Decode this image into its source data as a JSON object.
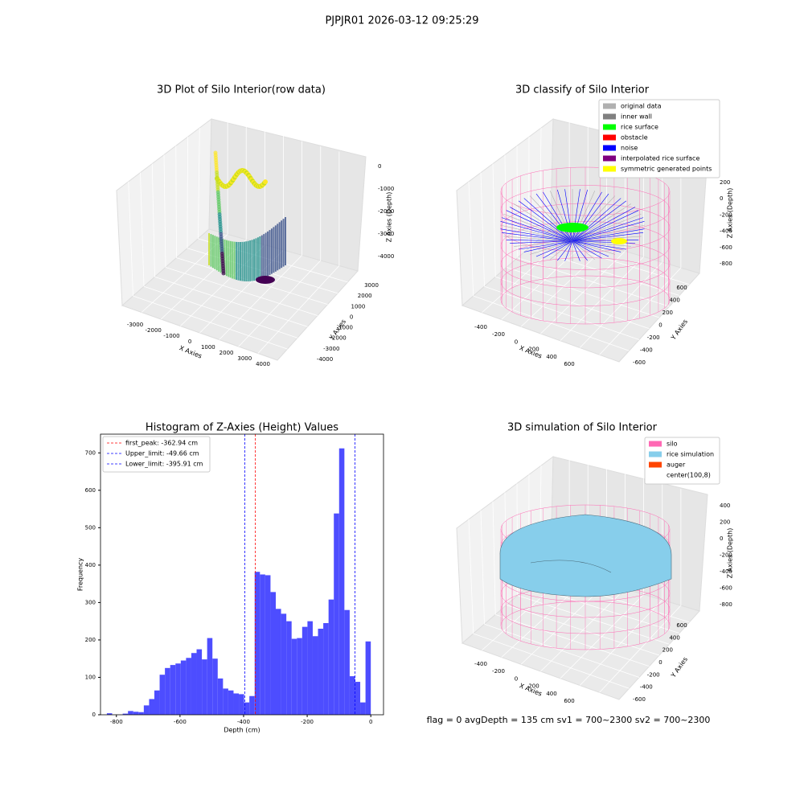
{
  "title": "PJPJR01 2026-03-12 09:25:29",
  "footer": "flag = 0     avgDepth = 135 cm  sv1 = 700~2300  sv2 = 700~2300",
  "chart_data": [
    {
      "type": "scatter3d",
      "title": "3D Plot of Silo Interior(row data)",
      "xlabel": "X Axies",
      "ylabel": "Y Axies",
      "zlabel": "Z Axies (Depth)",
      "xticks": [
        -3000,
        -2000,
        -1000,
        0,
        1000,
        2000,
        3000,
        4000
      ],
      "yticks": [
        -4000,
        -3000,
        -2000,
        -1000,
        0,
        1000,
        2000,
        3000
      ],
      "zticks": [
        -4000,
        -3000,
        -2000,
        -1000,
        0
      ]
    },
    {
      "type": "classify3d",
      "title": "3D classify of Silo Interior",
      "xlabel": "X Axies",
      "ylabel": "Y Axies",
      "zlabel": "Z Axies (Depth)",
      "xticks": [
        -400,
        -200,
        0,
        200,
        400,
        600
      ],
      "yticks": [
        -600,
        -400,
        -200,
        0,
        200,
        400,
        600
      ],
      "zticks": [
        -800,
        -600,
        -400,
        -200,
        0,
        200
      ],
      "legend": [
        {
          "name": "original data",
          "color": "#b0b0b0"
        },
        {
          "name": "inner wall",
          "color": "#808080"
        },
        {
          "name": "rice surface",
          "color": "#00ff00"
        },
        {
          "name": "obstacle",
          "color": "#ff0000"
        },
        {
          "name": "noise",
          "color": "#0000ff"
        },
        {
          "name": "interpolated rice surface",
          "color": "#800080"
        },
        {
          "name": "symmetric generated points",
          "color": "#ffff00"
        }
      ]
    },
    {
      "type": "histogram",
      "title": "Histogram of Z-Axies (Height) Values",
      "xlabel": "Depth (cm)",
      "ylabel": "Frequency",
      "color": "#4d4dff",
      "bins": [
        -830,
        -813.4,
        -796.8,
        -780.2,
        -763.6,
        -747,
        -730.4,
        -713.8,
        -697.2,
        -680.6,
        -664,
        -647.4,
        -630.8,
        -614.2,
        -597.6,
        -581,
        -564.4,
        -547.8,
        -531.2,
        -514.6,
        -498,
        -481.4,
        -464.8,
        -448.2,
        -431.6,
        -415,
        -398.4,
        -381.8,
        -365.2,
        -348.6,
        -332,
        -315.4,
        -298.8,
        -282.2,
        -265.6,
        -249,
        -232.4,
        -215.8,
        -199.2,
        -182.6,
        -166,
        -149.4,
        -132.8,
        -116.2,
        -99.6,
        -83,
        -66.4,
        -49.8,
        -33.2,
        -16.6,
        0
      ],
      "values": [
        4,
        0,
        0,
        3,
        10,
        8,
        7,
        25,
        42,
        65,
        107,
        125,
        133,
        137,
        145,
        152,
        165,
        175,
        148,
        205,
        150,
        97,
        70,
        65,
        57,
        55,
        33,
        50,
        382,
        375,
        373,
        328,
        283,
        270,
        250,
        203,
        205,
        235,
        250,
        210,
        230,
        245,
        308,
        538,
        712,
        280,
        103,
        88,
        33,
        196
      ],
      "xlim": [
        -850,
        40
      ],
      "ylim": [
        0,
        750
      ],
      "xticks": [
        -800,
        -600,
        -400,
        -200,
        0
      ],
      "yticks": [
        0,
        100,
        200,
        300,
        400,
        500,
        600,
        700
      ],
      "vlines": [
        {
          "label": "first_peak: -362.94 cm",
          "value": -362.94,
          "color": "#ff0000"
        },
        {
          "label": "Upper_limit: -49.66 cm",
          "value": -49.66,
          "color": "#0000ff"
        },
        {
          "label": "Lower_limit: -395.91 cm",
          "value": -395.91,
          "color": "#0000ff"
        }
      ]
    },
    {
      "type": "surface3d",
      "title": "3D simulation of Silo Interior",
      "xlabel": "X Axies",
      "ylabel": "Y Axies",
      "zlabel": "Z Axies (Depth)",
      "xticks": [
        -400,
        -200,
        0,
        200,
        400,
        600
      ],
      "yticks": [
        -600,
        -400,
        -200,
        0,
        200,
        400,
        600
      ],
      "zticks": [
        -800,
        -600,
        -400,
        -200,
        0,
        200,
        400
      ],
      "legend": [
        {
          "name": "silo",
          "color": "#ff69b4"
        },
        {
          "name": "rice simulation",
          "color": "#87ceeb"
        },
        {
          "name": "auger",
          "color": "#ff4500"
        },
        {
          "name": "center(100,8)",
          "color": "#ffffff"
        }
      ]
    }
  ]
}
